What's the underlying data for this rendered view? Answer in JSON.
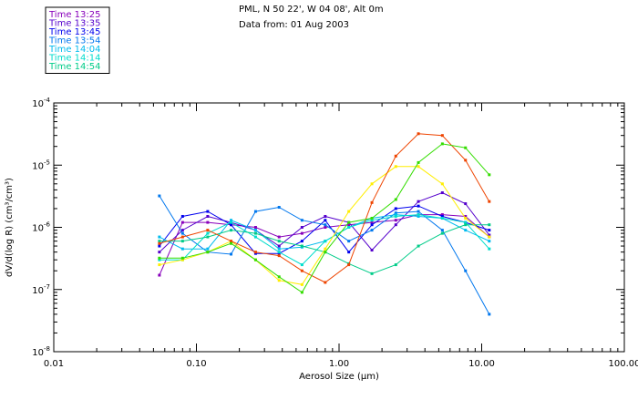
{
  "chart_data": {
    "type": "line",
    "title_lines": [
      "PML, N 50 22', W 04 08', Alt 0m",
      "Data from: 01 Aug 2003"
    ],
    "xlabel": "Aerosol Size (μm)",
    "ylabel": "dV/d(log R) (cm³/cm³)",
    "xscale": "log",
    "yscale": "log",
    "xlim": [
      0.01,
      100
    ],
    "ylim": [
      1e-08,
      0.0001
    ],
    "xticks": [
      {
        "value": 0.01,
        "label": "0.01"
      },
      {
        "value": 0.1,
        "label": "0.10"
      },
      {
        "value": 1,
        "label": "1.00"
      },
      {
        "value": 10,
        "label": "10.00"
      },
      {
        "value": 100,
        "label": "100.00"
      }
    ],
    "yticks": [
      {
        "value": 1e-08,
        "base": "10",
        "exp": "-8"
      },
      {
        "value": 1e-07,
        "base": "10",
        "exp": "-7"
      },
      {
        "value": 1e-06,
        "base": "10",
        "exp": "-6"
      },
      {
        "value": 1e-05,
        "base": "10",
        "exp": "-5"
      },
      {
        "value": 0.0001,
        "base": "10",
        "exp": "-4"
      }
    ],
    "x": [
      0.055,
      0.08,
      0.12,
      0.175,
      0.26,
      0.38,
      0.55,
      0.8,
      1.17,
      1.7,
      2.5,
      3.6,
      5.3,
      7.7,
      11.3
    ],
    "series": [
      {
        "name": "Time 13:25",
        "color": "#8800bb",
        "values": [
          1.7e-07,
          1.2e-06,
          1.2e-06,
          1.1e-06,
          1e-06,
          7e-07,
          8e-07,
          1e-06,
          1.1e-06,
          1.2e-06,
          1.3e-06,
          1.6e-06,
          1.6e-06,
          1.5e-06,
          7e-07
        ]
      },
      {
        "name": "Time 13:35",
        "color": "#5500cc",
        "values": [
          4e-07,
          9e-07,
          1.5e-06,
          1.2e-06,
          9e-07,
          5e-07,
          1e-06,
          1.5e-06,
          1.2e-06,
          4.3e-07,
          1.1e-06,
          2.6e-06,
          3.6e-06,
          2.4e-06,
          7.5e-07
        ]
      },
      {
        "name": "Time 13:45",
        "color": "#0000ee",
        "values": [
          5e-07,
          1.5e-06,
          1.8e-06,
          1.1e-06,
          3.8e-07,
          3.8e-07,
          6e-07,
          1.3e-06,
          4e-07,
          1.1e-06,
          2e-06,
          2.2e-06,
          1.5e-06,
          1.2e-06,
          9e-07
        ]
      },
      {
        "name": "Time 13:54",
        "color": "#0077ee",
        "values": [
          3.2e-06,
          8e-07,
          4e-07,
          3.7e-07,
          1.8e-06,
          2.1e-06,
          1.3e-06,
          1.1e-06,
          6e-07,
          9e-07,
          1.7e-06,
          1.8e-06,
          9e-07,
          2e-07,
          4e-08
        ]
      },
      {
        "name": "Time 14:04",
        "color": "#00bbee",
        "values": [
          7e-07,
          4.5e-07,
          4.5e-07,
          1.3e-06,
          9e-07,
          4.5e-07,
          4.8e-07,
          6e-07,
          1e-06,
          1.4e-06,
          1.6e-06,
          1.5e-06,
          1.4e-06,
          9e-07,
          6e-07
        ]
      },
      {
        "name": "Time 14:14",
        "color": "#00ddcc",
        "values": [
          3e-07,
          3e-07,
          8e-07,
          1.2e-06,
          7e-07,
          4e-07,
          2.5e-07,
          6e-07,
          1e-06,
          1.3e-06,
          1.5e-06,
          1.6e-06,
          1.4e-06,
          1.2e-06,
          4.5e-07
        ]
      },
      {
        "name": "Time 14:54",
        "color": "#00cc88",
        "values": [
          6e-07,
          6e-07,
          7e-07,
          9e-07,
          8e-07,
          6e-07,
          5e-07,
          4e-07,
          2.6e-07,
          1.8e-07,
          2.5e-07,
          5e-07,
          8e-07,
          1.1e-06,
          1.1e-06
        ]
      },
      {
        "name": "",
        "color": "#ffee00",
        "values": [
          2.5e-07,
          3e-07,
          4e-07,
          6e-07,
          3e-07,
          1.4e-07,
          1.2e-07,
          4.5e-07,
          1.8e-06,
          5e-06,
          9.5e-06,
          9.5e-06,
          5e-06,
          1.4e-06,
          7e-07
        ]
      },
      {
        "name": "",
        "color": "#ee4400",
        "values": [
          5.5e-07,
          7e-07,
          9e-07,
          6e-07,
          4e-07,
          3.5e-07,
          2e-07,
          1.3e-07,
          2.5e-07,
          2.5e-06,
          1.4e-05,
          3.2e-05,
          3e-05,
          1.2e-05,
          2.6e-06
        ]
      },
      {
        "name": "",
        "color": "#33dd00",
        "values": [
          3.2e-07,
          3.2e-07,
          4e-07,
          5.5e-07,
          3e-07,
          1.6e-07,
          9e-08,
          4e-07,
          1.2e-06,
          1.4e-06,
          2.8e-06,
          1.1e-05,
          2.2e-05,
          1.9e-05,
          7e-06
        ]
      }
    ]
  }
}
